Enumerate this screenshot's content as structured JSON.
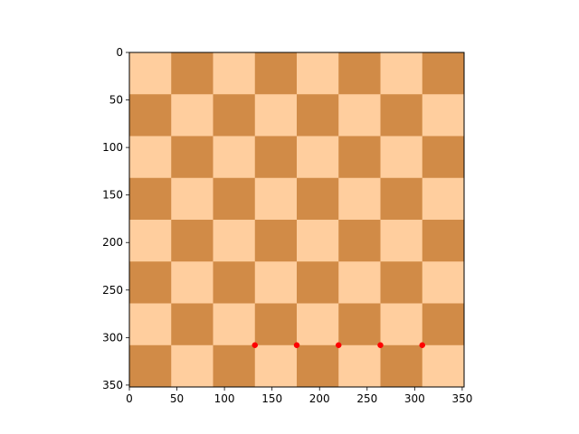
{
  "chart_data": {
    "type": "heatmap",
    "title": "",
    "xlabel": "",
    "ylabel": "",
    "image_extent": [
      0,
      352,
      352,
      0
    ],
    "xlim": [
      0,
      352
    ],
    "ylim": [
      352,
      0
    ],
    "grid": false,
    "board": {
      "rows": 8,
      "cols": 8,
      "light_color": "#FFCE9E",
      "dark_color": "#D18B47",
      "top_left_is_light": true
    },
    "x_ticks": [
      0,
      50,
      100,
      150,
      200,
      250,
      300,
      350
    ],
    "y_ticks": [
      0,
      50,
      100,
      150,
      200,
      250,
      300,
      350
    ],
    "series": [
      {
        "type": "scatter",
        "color": "#ff0000",
        "marker": "circle",
        "points": [
          {
            "x": 132,
            "y": 308
          },
          {
            "x": 176,
            "y": 308
          },
          {
            "x": 220,
            "y": 308
          },
          {
            "x": 264,
            "y": 308
          },
          {
            "x": 308,
            "y": 308
          }
        ]
      }
    ]
  }
}
